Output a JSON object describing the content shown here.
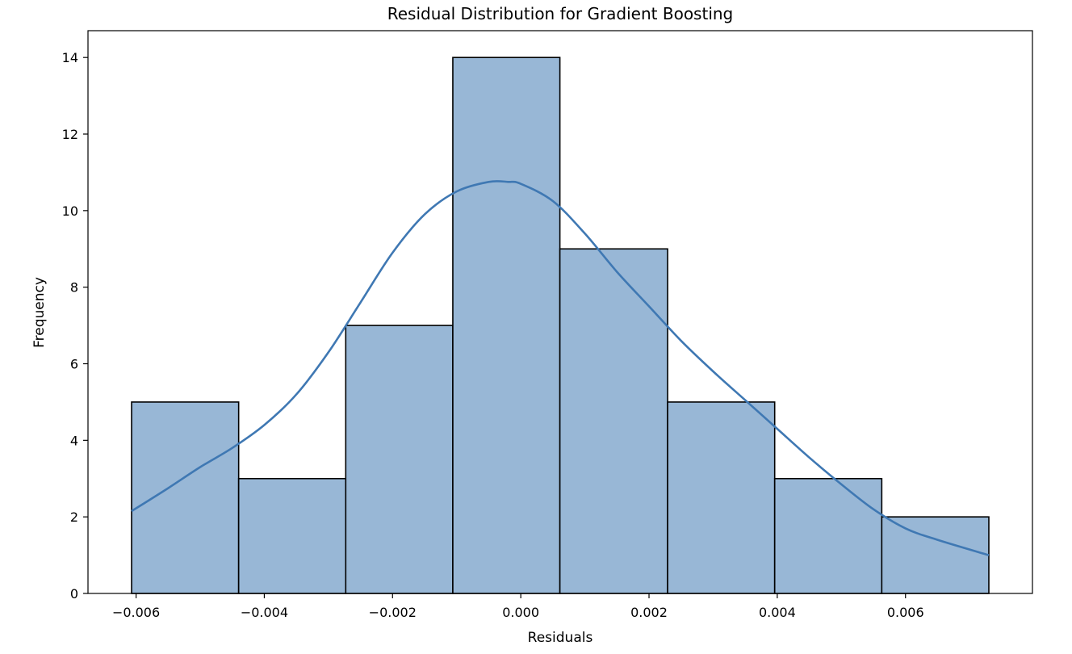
{
  "chart_data": {
    "type": "bar",
    "title": "Residual Distribution for Gradient Boosting",
    "xlabel": "Residuals",
    "ylabel": "Frequency",
    "bins": [
      {
        "start": -0.00607,
        "end": -0.0044,
        "count": 5
      },
      {
        "start": -0.0044,
        "end": -0.00273,
        "count": 3
      },
      {
        "start": -0.00273,
        "end": -0.00106,
        "count": 7
      },
      {
        "start": -0.00106,
        "end": 0.00061,
        "count": 14
      },
      {
        "start": 0.00061,
        "end": 0.00229,
        "count": 9
      },
      {
        "start": 0.00229,
        "end": 0.00396,
        "count": 5
      },
      {
        "start": 0.00396,
        "end": 0.00563,
        "count": 3
      },
      {
        "start": 0.00563,
        "end": 0.0073,
        "count": 2
      }
    ],
    "kde": {
      "x": [
        -0.00607,
        -0.0055,
        -0.005,
        -0.0045,
        -0.004,
        -0.0035,
        -0.003,
        -0.0025,
        -0.002,
        -0.0015,
        -0.001,
        -0.0005,
        -0.0002,
        0.0,
        0.0005,
        0.001,
        0.0015,
        0.002,
        0.0025,
        0.003,
        0.0035,
        0.004,
        0.0045,
        0.005,
        0.0055,
        0.006,
        0.0065,
        0.0073
      ],
      "y": [
        2.15,
        2.75,
        3.3,
        3.8,
        4.4,
        5.2,
        6.3,
        7.6,
        8.9,
        9.9,
        10.5,
        10.75,
        10.75,
        10.7,
        10.25,
        9.4,
        8.4,
        7.5,
        6.6,
        5.8,
        5.05,
        4.3,
        3.55,
        2.85,
        2.2,
        1.7,
        1.4,
        1.0
      ]
    },
    "xlim": [
      -0.00675,
      0.00798
    ],
    "ylim": [
      0,
      14.7
    ],
    "xticks": [
      -0.006,
      -0.004,
      -0.002,
      0.0,
      0.002,
      0.004,
      0.006
    ],
    "xtick_labels": [
      "−0.006",
      "−0.004",
      "−0.002",
      "0.000",
      "0.002",
      "0.004",
      "0.006"
    ],
    "yticks": [
      0,
      2,
      4,
      6,
      8,
      10,
      12,
      14
    ],
    "ytick_labels": [
      "0",
      "2",
      "4",
      "6",
      "8",
      "10",
      "12",
      "14"
    ],
    "grid": false,
    "bar_color": "#98b7d6",
    "bar_edge_color": "#000000",
    "kde_color": "#3f78b3"
  }
}
